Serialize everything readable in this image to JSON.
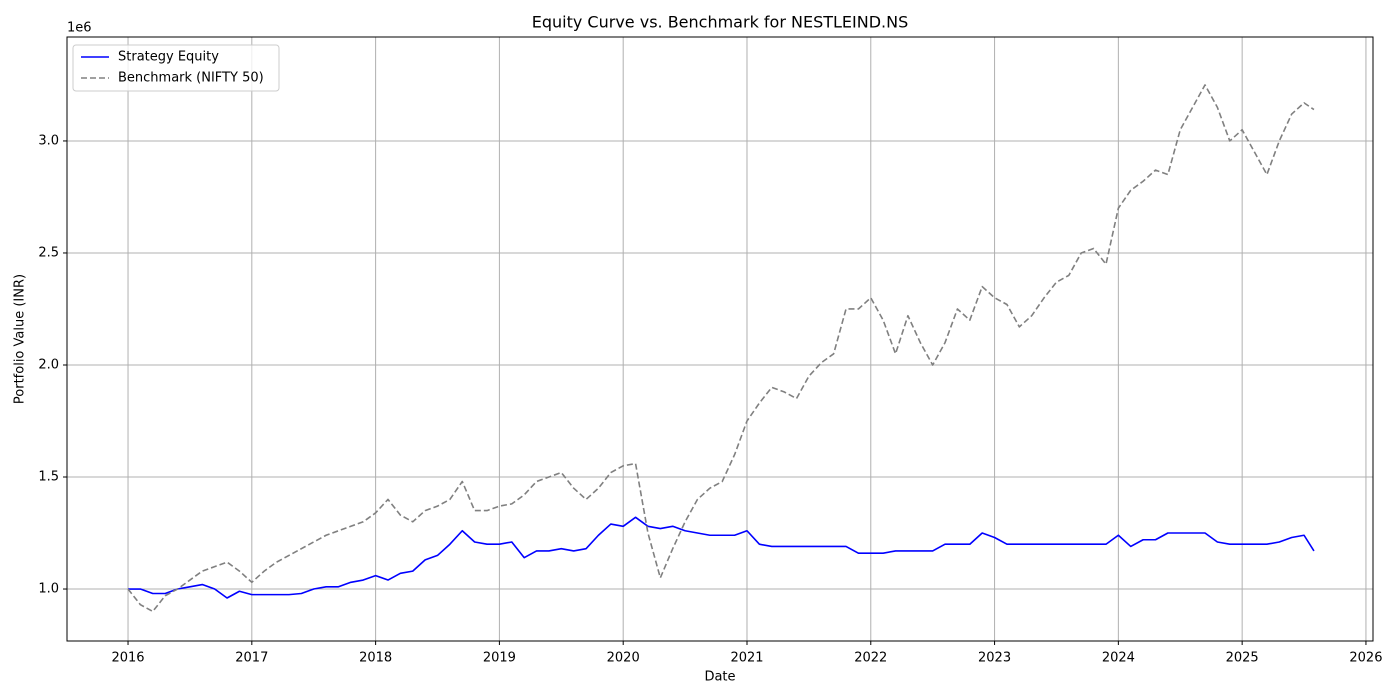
{
  "chart_data": {
    "type": "line",
    "title": "Equity Curve vs. Benchmark for NESTLEIND.NS",
    "x_label": "Date",
    "y_label": "Portfolio Value (INR)",
    "y_offset_label": "1e6",
    "x": [
      2016,
      2016.1,
      2016.2,
      2016.3,
      2016.4,
      2016.5,
      2016.6,
      2016.7,
      2016.8,
      2016.9,
      2017,
      2017.1,
      2017.2,
      2017.3,
      2017.4,
      2017.5,
      2017.6,
      2017.7,
      2017.8,
      2017.9,
      2018,
      2018.1,
      2018.2,
      2018.3,
      2018.4,
      2018.5,
      2018.6,
      2018.7,
      2018.8,
      2018.9,
      2019,
      2019.1,
      2019.2,
      2019.3,
      2019.4,
      2019.5,
      2019.6,
      2019.7,
      2019.8,
      2019.9,
      2020,
      2020.1,
      2020.2,
      2020.3,
      2020.4,
      2020.5,
      2020.6,
      2020.7,
      2020.8,
      2020.9,
      2021,
      2021.1,
      2021.2,
      2021.3,
      2021.4,
      2021.5,
      2021.6,
      2021.7,
      2021.8,
      2021.9,
      2022,
      2022.1,
      2022.2,
      2022.3,
      2022.4,
      2022.5,
      2022.6,
      2022.7,
      2022.8,
      2022.9,
      2023,
      2023.1,
      2023.2,
      2023.3,
      2023.4,
      2023.5,
      2023.6,
      2023.7,
      2023.8,
      2023.9,
      2024,
      2024.1,
      2024.2,
      2024.3,
      2024.4,
      2024.5,
      2024.6,
      2024.7,
      2024.8,
      2024.9,
      2025,
      2025.1,
      2025.2,
      2025.3,
      2025.4,
      2025.5,
      2025.58
    ],
    "series": [
      {
        "name": "Strategy Equity",
        "color": "#0000ff",
        "line_style": "solid",
        "values": [
          1000000,
          1000000,
          980000,
          980000,
          1000000,
          1010000,
          1020000,
          1000000,
          960000,
          990000,
          975000,
          975000,
          975000,
          975000,
          980000,
          1000000,
          1010000,
          1010000,
          1030000,
          1040000,
          1060000,
          1040000,
          1070000,
          1080000,
          1130000,
          1150000,
          1200000,
          1260000,
          1210000,
          1200000,
          1200000,
          1210000,
          1140000,
          1170000,
          1170000,
          1180000,
          1170000,
          1180000,
          1240000,
          1290000,
          1280000,
          1320000,
          1280000,
          1270000,
          1280000,
          1260000,
          1250000,
          1240000,
          1240000,
          1240000,
          1260000,
          1200000,
          1190000,
          1190000,
          1190000,
          1190000,
          1190000,
          1190000,
          1190000,
          1160000,
          1160000,
          1160000,
          1170000,
          1170000,
          1170000,
          1170000,
          1200000,
          1200000,
          1200000,
          1250000,
          1230000,
          1200000,
          1200000,
          1200000,
          1200000,
          1200000,
          1200000,
          1200000,
          1200000,
          1200000,
          1240000,
          1190000,
          1220000,
          1220000,
          1250000,
          1250000,
          1250000,
          1250000,
          1210000,
          1200000,
          1200000,
          1200000,
          1200000,
          1210000,
          1230000,
          1240000,
          1170000
        ]
      },
      {
        "name": "Benchmark (NIFTY 50)",
        "color": "#808080",
        "line_style": "dashed",
        "values": [
          1000000,
          930000,
          900000,
          970000,
          1000000,
          1040000,
          1080000,
          1100000,
          1120000,
          1080000,
          1030000,
          1080000,
          1120000,
          1150000,
          1180000,
          1210000,
          1240000,
          1260000,
          1280000,
          1300000,
          1340000,
          1400000,
          1330000,
          1300000,
          1350000,
          1370000,
          1400000,
          1480000,
          1350000,
          1350000,
          1370000,
          1380000,
          1420000,
          1480000,
          1500000,
          1520000,
          1450000,
          1400000,
          1450000,
          1520000,
          1550000,
          1560000,
          1250000,
          1050000,
          1180000,
          1300000,
          1400000,
          1450000,
          1480000,
          1600000,
          1750000,
          1830000,
          1900000,
          1880000,
          1850000,
          1950000,
          2010000,
          2050000,
          2250000,
          2250000,
          2300000,
          2200000,
          2050000,
          2220000,
          2100000,
          2000000,
          2100000,
          2250000,
          2200000,
          2350000,
          2300000,
          2270000,
          2170000,
          2220000,
          2300000,
          2370000,
          2400000,
          2500000,
          2520000,
          2450000,
          2700000,
          2780000,
          2820000,
          2870000,
          2850000,
          3050000,
          3150000,
          3250000,
          3150000,
          3000000,
          3050000,
          2950000,
          2850000,
          3000000,
          3120000,
          3170000,
          3140000
        ]
      }
    ],
    "xlim": [
      2015.507,
      2026.057
    ],
    "xticks": [
      2016,
      2017,
      2018,
      2019,
      2020,
      2021,
      2022,
      2023,
      2024,
      2025,
      2026
    ],
    "ylim": [
      768000,
      3464000
    ],
    "yticks": [
      {
        "value": 1000000,
        "label": "1.0"
      },
      {
        "value": 1500000,
        "label": "1.5"
      },
      {
        "value": 2000000,
        "label": "2.0"
      },
      {
        "value": 2500000,
        "label": "2.5"
      },
      {
        "value": 3000000,
        "label": "3.0"
      }
    ],
    "grid": true,
    "legend_position": "upper left"
  }
}
